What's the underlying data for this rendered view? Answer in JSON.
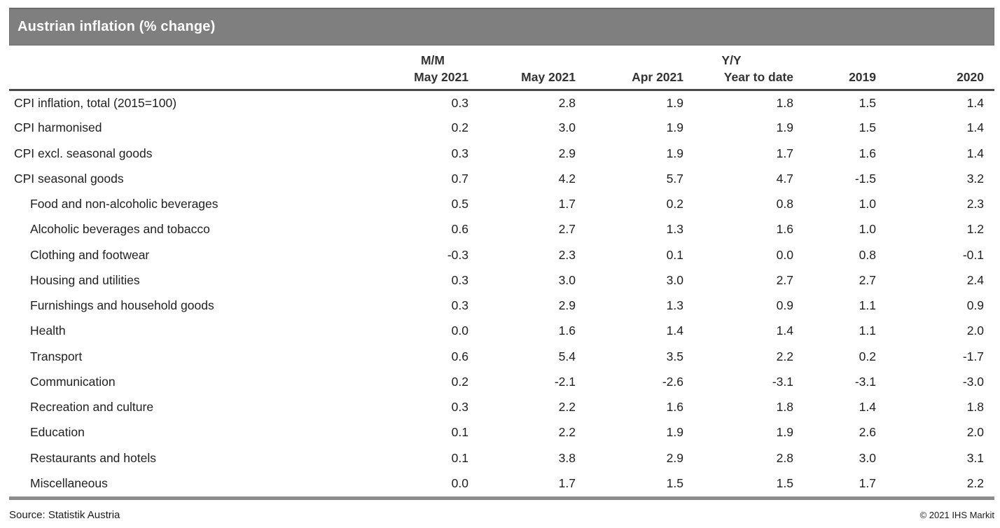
{
  "title_bar": {
    "title": "Austrian inflation (% change)"
  },
  "chart_data": {
    "type": "table",
    "title": "Austrian inflation (% change)",
    "column_groups": [
      {
        "label": "M/M",
        "span": 1
      },
      {
        "label": "Y/Y",
        "span": 5
      }
    ],
    "columns": [
      "May 2021",
      "May 2021",
      "Apr 2021",
      "Year to date",
      "2019",
      "2020"
    ],
    "rows": [
      {
        "label": "CPI inflation, total (2015=100)",
        "indent": false,
        "values": [
          "0.3",
          "2.8",
          "1.9",
          "1.8",
          "1.5",
          "1.4"
        ]
      },
      {
        "label": "CPI harmonised",
        "indent": false,
        "values": [
          "0.2",
          "3.0",
          "1.9",
          "1.9",
          "1.5",
          "1.4"
        ]
      },
      {
        "label": "CPI excl. seasonal goods",
        "indent": false,
        "values": [
          "0.3",
          "2.9",
          "1.9",
          "1.7",
          "1.6",
          "1.4"
        ]
      },
      {
        "label": "CPI seasonal goods",
        "indent": false,
        "values": [
          "0.7",
          "4.2",
          "5.7",
          "4.7",
          "-1.5",
          "3.2"
        ]
      },
      {
        "label": "Food and non-alcoholic beverages",
        "indent": true,
        "values": [
          "0.5",
          "1.7",
          "0.2",
          "0.8",
          "1.0",
          "2.3"
        ]
      },
      {
        "label": "Alcoholic beverages and tobacco",
        "indent": true,
        "values": [
          "0.6",
          "2.7",
          "1.3",
          "1.6",
          "1.0",
          "1.2"
        ]
      },
      {
        "label": "Clothing and footwear",
        "indent": true,
        "values": [
          "-0.3",
          "2.3",
          "0.1",
          "0.0",
          "0.8",
          "-0.1"
        ]
      },
      {
        "label": "Housing and utilities",
        "indent": true,
        "values": [
          "0.3",
          "3.0",
          "3.0",
          "2.7",
          "2.7",
          "2.4"
        ]
      },
      {
        "label": "Furnishings and household goods",
        "indent": true,
        "values": [
          "0.3",
          "2.9",
          "1.3",
          "0.9",
          "1.1",
          "0.9"
        ]
      },
      {
        "label": "Health",
        "indent": true,
        "values": [
          "0.0",
          "1.6",
          "1.4",
          "1.4",
          "1.1",
          "2.0"
        ]
      },
      {
        "label": "Transport",
        "indent": true,
        "values": [
          "0.6",
          "5.4",
          "3.5",
          "2.2",
          "0.2",
          "-1.7"
        ]
      },
      {
        "label": "Communication",
        "indent": true,
        "values": [
          "0.2",
          "-2.1",
          "-2.6",
          "-3.1",
          "-3.1",
          "-3.0"
        ]
      },
      {
        "label": "Recreation and culture",
        "indent": true,
        "values": [
          "0.3",
          "2.2",
          "1.6",
          "1.8",
          "1.4",
          "1.8"
        ]
      },
      {
        "label": "Education",
        "indent": true,
        "values": [
          "0.1",
          "2.2",
          "1.9",
          "1.9",
          "2.6",
          "2.0"
        ]
      },
      {
        "label": "Restaurants and hotels",
        "indent": true,
        "values": [
          "0.1",
          "3.8",
          "2.9",
          "2.8",
          "3.0",
          "3.1"
        ]
      },
      {
        "label": "Miscellaneous",
        "indent": true,
        "values": [
          "0.0",
          "1.7",
          "1.5",
          "1.5",
          "1.7",
          "2.2"
        ]
      }
    ]
  },
  "footer": {
    "source": "Source: Statistik Austria",
    "copyright": "© 2021 IHS Markit"
  },
  "colors": {
    "title_bar_bg": "#7f7f7f",
    "title_bar_border": "#6d6d6d",
    "title_text": "#ffffff",
    "header_rule": "#4a4a4a",
    "bottom_rule": "#8c8c8c",
    "text": "#212121"
  }
}
